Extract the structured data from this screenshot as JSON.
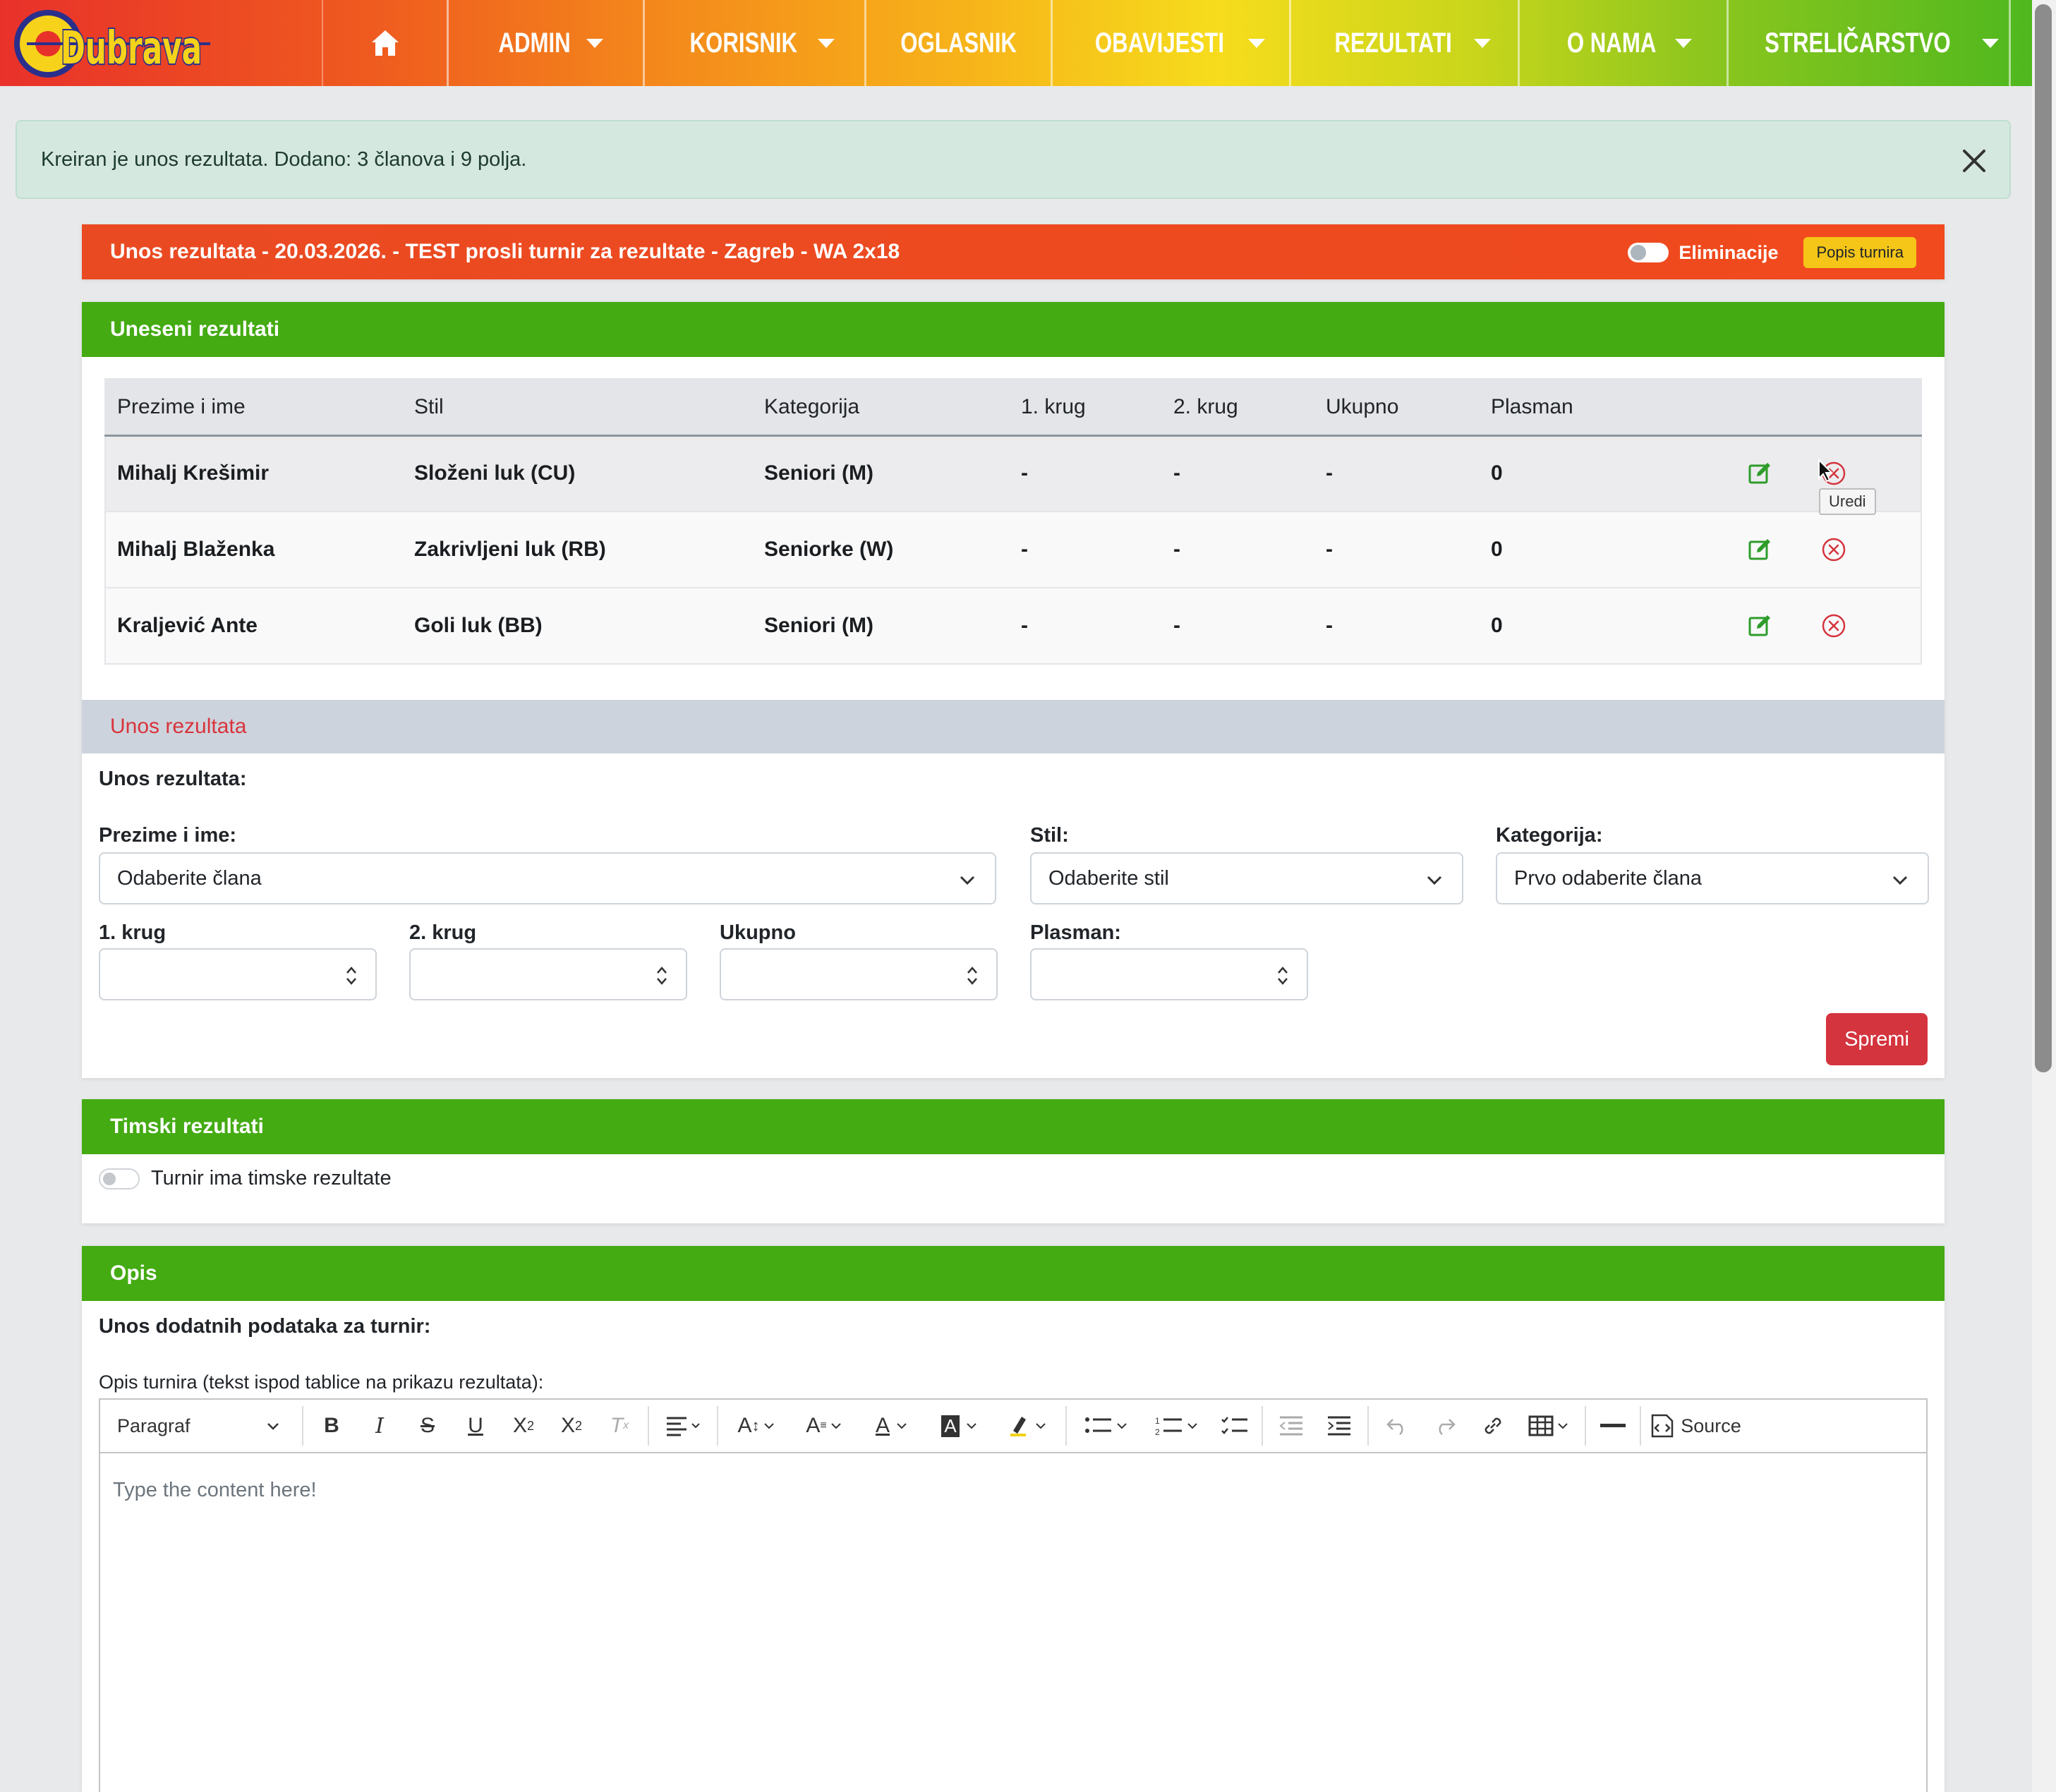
{
  "nav": {
    "logo_text": "Dubrava",
    "items": [
      {
        "label": "ADMIN",
        "dropdown": true
      },
      {
        "label": "KORISNIK",
        "dropdown": true
      },
      {
        "label": "OGLASNIK",
        "dropdown": false
      },
      {
        "label": "OBAVIJESTI",
        "dropdown": true
      },
      {
        "label": "REZULTATI",
        "dropdown": true
      },
      {
        "label": "O NAMA",
        "dropdown": true
      },
      {
        "label": "STRELIČARSTVO",
        "dropdown": true
      }
    ]
  },
  "alert": {
    "message": "Kreiran je unos rezultata. Dodano: 3 članova i 9 polja."
  },
  "top_card": {
    "title": "Unos rezultata - 20.03.2026. - TEST prosli turnir za rezultate - Zagreb - WA 2x18",
    "elim_label": "Eliminacije",
    "list_button": "Popis turnira"
  },
  "results": {
    "title": "Uneseni rezultati",
    "columns": [
      "Prezime i ime",
      "Stil",
      "Kategorija",
      "1. krug",
      "2. krug",
      "Ukupno",
      "Plasman"
    ],
    "rows": [
      {
        "name": "Mihalj Krešimir",
        "style": "Složeni luk (CU)",
        "category": "Seniori (M)",
        "r1": "-",
        "r2": "-",
        "total": "-",
        "place": "0"
      },
      {
        "name": "Mihalj Blaženka",
        "style": "Zakrivljeni luk (RB)",
        "category": "Seniorke (W)",
        "r1": "-",
        "r2": "-",
        "total": "-",
        "place": "0"
      },
      {
        "name": "Kraljević Ante",
        "style": "Goli luk (BB)",
        "category": "Seniori (M)",
        "r1": "-",
        "r2": "-",
        "total": "-",
        "place": "0"
      }
    ],
    "tooltip": "Uredi"
  },
  "entry": {
    "title": "Unos rezultata",
    "subtitle": "Unos rezultata:",
    "name_label": "Prezime i ime:",
    "name_value": "Odaberite člana",
    "style_label": "Stil:",
    "style_value": "Odaberite stil",
    "category_label": "Kategorija:",
    "category_value": "Prvo odaberite člana",
    "r1_label": "1. krug",
    "r2_label": "2. krug",
    "total_label": "Ukupno",
    "place_label": "Plasman:",
    "save": "Spremi"
  },
  "team": {
    "title": "Timski rezultati",
    "toggle_label": "Turnir ima timske rezultate"
  },
  "description": {
    "title": "Opis",
    "subtitle": "Unos dodatnih podataka za turnir:",
    "field_label": "Opis turnira (tekst ispod tablice na prikazu rezultata):",
    "paragraph": "Paragraf",
    "source": "Source",
    "placeholder": "Type the content here!"
  }
}
